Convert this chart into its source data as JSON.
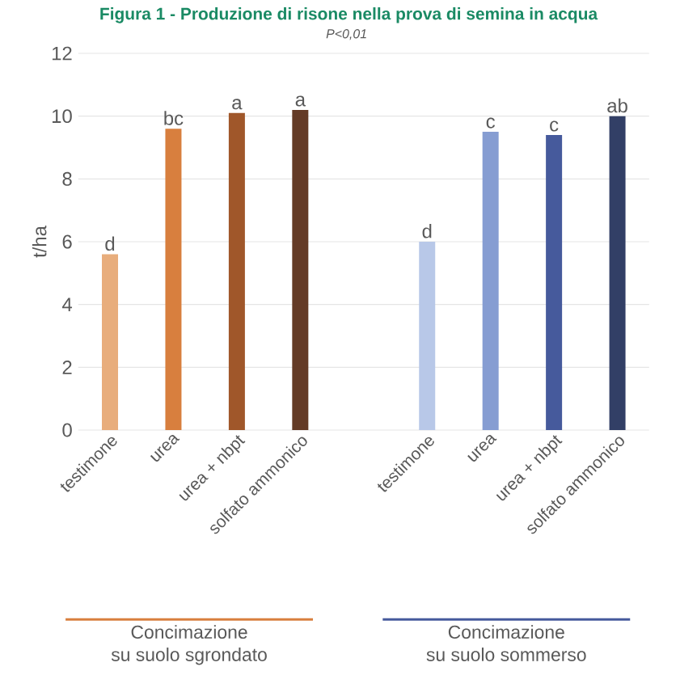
{
  "chart_data": {
    "type": "bar",
    "title": "Figura 1 - Produzione di risone nella prova di semina in acqua",
    "ylabel": "t/ha",
    "categories": [
      "testimone",
      "urea",
      "urea + nbpt",
      "solfato ammonico",
      null,
      "testimone",
      "urea",
      "urea + nbpt",
      "solfato ammonico"
    ],
    "values": [
      5.6,
      9.6,
      10.1,
      10.2,
      null,
      6.0,
      9.5,
      9.4,
      10.0
    ],
    "value_labels": [
      "d",
      "bc",
      "a",
      "a",
      null,
      "d",
      "c",
      "c",
      "ab"
    ],
    "colors": [
      "#e8ad7c",
      "#d87f3e",
      "#a0572a",
      "#643b26",
      "#ffffff",
      "#b8c8e8",
      "#869dd2",
      "#465a9c",
      "#323f66"
    ],
    "ylim": [
      0,
      12
    ],
    "yticks": [
      0,
      2,
      4,
      6,
      8,
      10,
      12
    ],
    "grid": "y",
    "annotations": [
      "P<0,01",
      "Concimazione\nsu suolo sgrondato",
      "Concimazione\nsu suolo sommerso"
    ]
  }
}
